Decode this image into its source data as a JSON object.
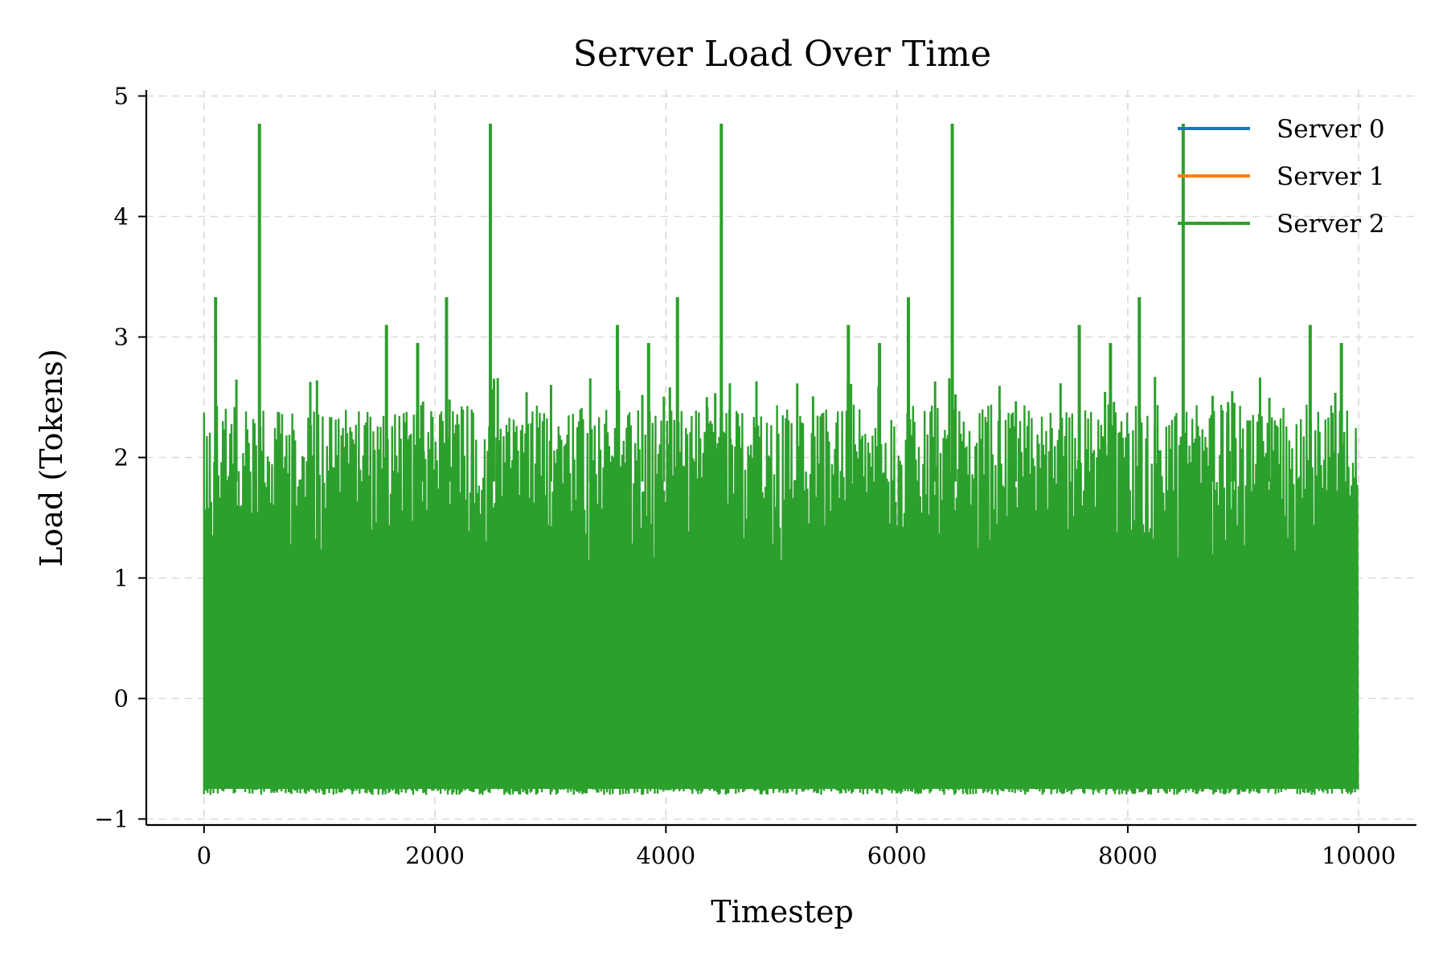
{
  "chart_data": {
    "type": "line",
    "title": "Server Load Over Time",
    "xlabel": "Timestep",
    "ylabel": "Load (Tokens)",
    "xlim": [
      -500,
      10500
    ],
    "ylim": [
      -1.05,
      5.05
    ],
    "xticks": [
      0,
      2000,
      4000,
      6000,
      8000,
      10000
    ],
    "yticks": [
      -1,
      0,
      1,
      2,
      3,
      4,
      5
    ],
    "xtick_labels": [
      "0",
      "2000",
      "4000",
      "6000",
      "8000",
      "10000"
    ],
    "ytick_labels": [
      "−1",
      "0",
      "1",
      "2",
      "3",
      "4",
      "5"
    ],
    "grid": true,
    "legend_position": "top-right",
    "x_range": [
      0,
      10000
    ],
    "series": [
      {
        "name": "Server 0",
        "color": "#1f77b4",
        "values": [],
        "note_values": "hidden behind Server 2"
      },
      {
        "name": "Server 1",
        "color": "#ff7f0e",
        "values": []
      },
      {
        "name": "Server 2",
        "color": "#2ca02c",
        "typical_range": [
          -0.8,
          2.4
        ],
        "peaks": [
          {
            "x": 100,
            "y": 3.33
          },
          {
            "x": 480,
            "y": 4.77
          },
          {
            "x": 1580,
            "y": 3.1
          },
          {
            "x": 1850,
            "y": 2.95
          },
          {
            "x": 2100,
            "y": 3.33
          },
          {
            "x": 2480,
            "y": 4.77
          },
          {
            "x": 3580,
            "y": 3.1
          },
          {
            "x": 3850,
            "y": 2.95
          },
          {
            "x": 4100,
            "y": 3.33
          },
          {
            "x": 4480,
            "y": 4.77
          },
          {
            "x": 5580,
            "y": 3.1
          },
          {
            "x": 5850,
            "y": 2.95
          },
          {
            "x": 6100,
            "y": 3.33
          },
          {
            "x": 6480,
            "y": 4.77
          },
          {
            "x": 7580,
            "y": 3.1
          },
          {
            "x": 7850,
            "y": 2.95
          },
          {
            "x": 8100,
            "y": 3.33
          },
          {
            "x": 8480,
            "y": 4.77
          },
          {
            "x": 9580,
            "y": 3.1
          },
          {
            "x": 9850,
            "y": 2.95
          }
        ]
      }
    ]
  }
}
